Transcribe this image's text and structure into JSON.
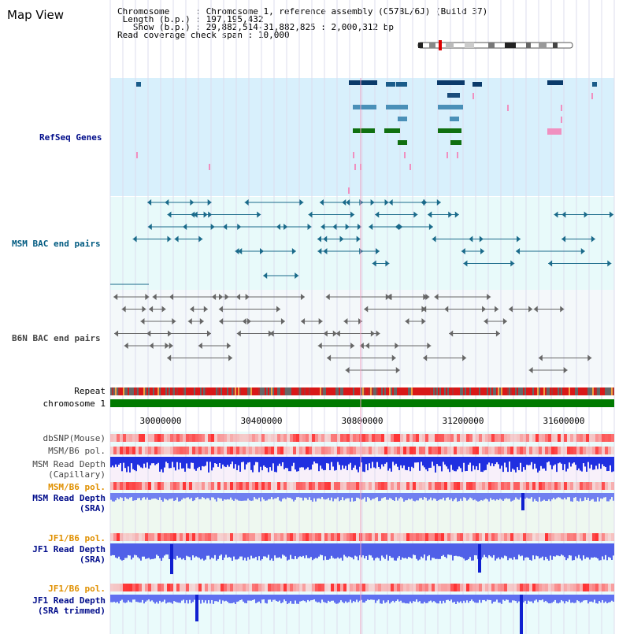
{
  "page": {
    "title": "Map View"
  },
  "info": {
    "chromosome_label": "Chromosome",
    "chromosome_value": "Chromosome 1, reference assembly (C57BL/6J) (Build 37)",
    "length_label": "Length (b.p.)",
    "length_value": "197,195,432",
    "show_label": "Show (b.p.)",
    "show_value": "29,882,514-31,882,825 : 2,000,312 bp",
    "span_label": "Read coverage check span",
    "span_value": "10,000"
  },
  "tracks": {
    "refseq": "RefSeq Genes",
    "msm_bac": "MSM BAC end pairs",
    "b6n_bac": "B6N BAC end pairs",
    "repeat": "Repeat",
    "chromosome": "chromosome 1",
    "dbsnp": "dbSNP(Mouse)",
    "msm_b6_pol_1": "MSM/B6 pol.",
    "msm_depth_cap_1": "MSM Read Depth",
    "msm_depth_cap_2": "(Capillary)",
    "msm_b6_pol_2": "MSM/B6 pol.",
    "msm_depth_sra_1": "MSM Read Depth",
    "msm_depth_sra_2": "(SRA)",
    "jf1_b6_pol_1": "JF1/B6 pol.",
    "jf1_depth_sra_1": "JF1 Read Depth",
    "jf1_depth_sra_2": "(SRA)",
    "jf1_b6_pol_2": "JF1/B6 pol.",
    "jf1_depth_trim_1": "JF1 Read Depth",
    "jf1_depth_trim_2": "(SRA trimmed)"
  },
  "ruler": {
    "ticks": [
      "30000000",
      "30400000",
      "30800000",
      "31200000",
      "31600000"
    ]
  },
  "colors": {
    "refseq_bg": "#d8f0fc",
    "bac_bg": "#e8fafa",
    "b6n_bg": "#f4f8fa",
    "chromosome": "#007a00",
    "navy_label": "#000c8a",
    "orange_label": "#e09000"
  }
}
